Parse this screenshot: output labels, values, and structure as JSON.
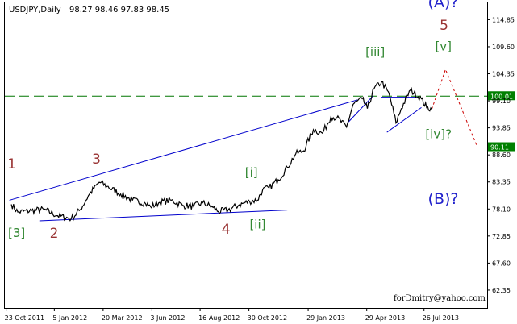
{
  "header": {
    "symbol": "USDJPY,Daily",
    "ohlc": "98.27 98.46 97.83 98.45"
  },
  "credit": "forDmitry@yahoo.com",
  "colors": {
    "price": "#000000",
    "trend_line": "#0000cc",
    "support_line": "#007700",
    "forecast": "#cc0000",
    "wave_red": "#993333",
    "wave_green": "#338833",
    "wave_blue": "#2222cc",
    "level_box": "#008000"
  },
  "chart_data": {
    "type": "line",
    "title": "USDJPY,Daily",
    "xlabel": "",
    "ylabel": "",
    "ylim": [
      58.9,
      118.2
    ],
    "grid": false,
    "x_ticks": [
      "23 Oct 2011",
      "5 Jan 2012",
      "20 Mar 2012",
      "3 Jun 2012",
      "16 Aug 2012",
      "30 Oct 2012",
      "29 Jan 2013",
      "29 Apr 2013",
      "26 Jul 2013"
    ],
    "y_ticks": [
      114.85,
      109.6,
      104.35,
      99.1,
      93.85,
      88.6,
      83.35,
      78.1,
      72.85,
      67.6,
      62.35
    ],
    "series": [
      {
        "x": [
          "2011-10-31",
          "2011-11-10",
          "2011-12-01",
          "2011-12-20",
          "2012-01-10",
          "2012-01-31",
          "2012-02-14",
          "2012-02-28",
          "2012-03-14",
          "2012-03-26",
          "2012-04-16",
          "2012-05-04",
          "2012-05-24",
          "2012-06-01",
          "2012-06-15",
          "2012-07-03",
          "2012-07-20",
          "2012-08-06",
          "2012-08-20",
          "2012-09-05",
          "2012-09-13",
          "2012-09-28",
          "2012-10-15",
          "2012-10-31",
          "2012-11-12",
          "2012-11-20",
          "2012-11-30",
          "2012-12-14",
          "2012-12-28",
          "2013-01-10",
          "2013-01-22",
          "2013-02-06",
          "2013-02-20",
          "2013-03-05",
          "2013-03-14",
          "2013-03-29",
          "2013-04-08",
          "2013-04-22",
          "2013-04-30",
          "2013-05-10",
          "2013-05-22",
          "2013-06-03",
          "2013-06-13",
          "2013-06-21",
          "2013-07-05",
          "2013-07-22",
          "2013-07-30",
          "2013-08-07"
        ],
        "values": [
          79.0,
          77.5,
          77.8,
          78.0,
          76.8,
          76.2,
          78.0,
          81.0,
          83.3,
          82.5,
          81.0,
          79.8,
          79.2,
          78.5,
          79.4,
          79.8,
          78.8,
          78.6,
          79.3,
          78.4,
          77.6,
          77.9,
          78.9,
          79.6,
          79.8,
          81.8,
          82.2,
          83.8,
          86.2,
          88.8,
          89.4,
          93.5,
          92.8,
          96.0,
          95.8,
          94.0,
          98.4,
          99.5,
          97.6,
          101.4,
          102.8,
          100.2,
          94.8,
          97.6,
          101.2,
          99.5,
          97.8,
          97.5
        ]
      }
    ],
    "levels": [
      {
        "value": 100.01,
        "label": "100.01"
      },
      {
        "value": 90.11,
        "label": "90.11"
      }
    ],
    "trend_lines": [
      {
        "from": [
          "2011-10-28",
          79.8
        ],
        "to": [
          "2013-04-15",
          99.3
        ]
      },
      {
        "from": [
          "2011-12-13",
          75.8
        ],
        "to": [
          "2012-12-28",
          77.9
        ]
      },
      {
        "from": [
          "2013-04-01",
          95.0
        ],
        "to": [
          "2013-05-09",
          100.1
        ]
      },
      {
        "from": [
          "2013-05-21",
          99.8
        ],
        "to": [
          "2013-07-18",
          99.8
        ]
      },
      {
        "from": [
          "2013-05-30",
          93.0
        ],
        "to": [
          "2013-07-22",
          97.8
        ]
      }
    ],
    "forecast_path": [
      {
        "x": "2013-08-07",
        "y": 97.5
      },
      {
        "x": "2013-08-28",
        "y": 105.2
      },
      {
        "x": "2013-10-16",
        "y": 90.1
      }
    ],
    "annotations": [
      {
        "text": "1",
        "style": "red",
        "x": "2011-10-25",
        "y": 86.0
      },
      {
        "text": "[3]",
        "style": "green",
        "x": "2011-10-26",
        "y": 72.7
      },
      {
        "text": "2",
        "style": "red",
        "x": "2011-12-29",
        "y": 72.5
      },
      {
        "text": "3",
        "style": "red",
        "x": "2012-03-03",
        "y": 86.9
      },
      {
        "text": "4",
        "style": "red",
        "x": "2012-09-18",
        "y": 73.3
      },
      {
        "text": "[i]",
        "style": "green",
        "x": "2012-10-24",
        "y": 84.4
      },
      {
        "text": "[ii]",
        "style": "green",
        "x": "2012-10-31",
        "y": 74.3
      },
      {
        "text": "[iii]",
        "style": "green",
        "x": "2013-04-27",
        "y": 107.8
      },
      {
        "text": "5",
        "style": "red",
        "x": "2013-08-19",
        "y": 112.9
      },
      {
        "text": "[v]",
        "style": "green",
        "x": "2013-08-12",
        "y": 108.9
      },
      {
        "text": "[iv]?",
        "style": "green",
        "x": "2013-07-28",
        "y": 91.8
      },
      {
        "text": "(A)?",
        "style": "blue",
        "x": "2013-08-01",
        "y": 117.3
      },
      {
        "text": "(B)?",
        "style": "blue",
        "x": "2013-08-01",
        "y": 79.1
      }
    ]
  }
}
